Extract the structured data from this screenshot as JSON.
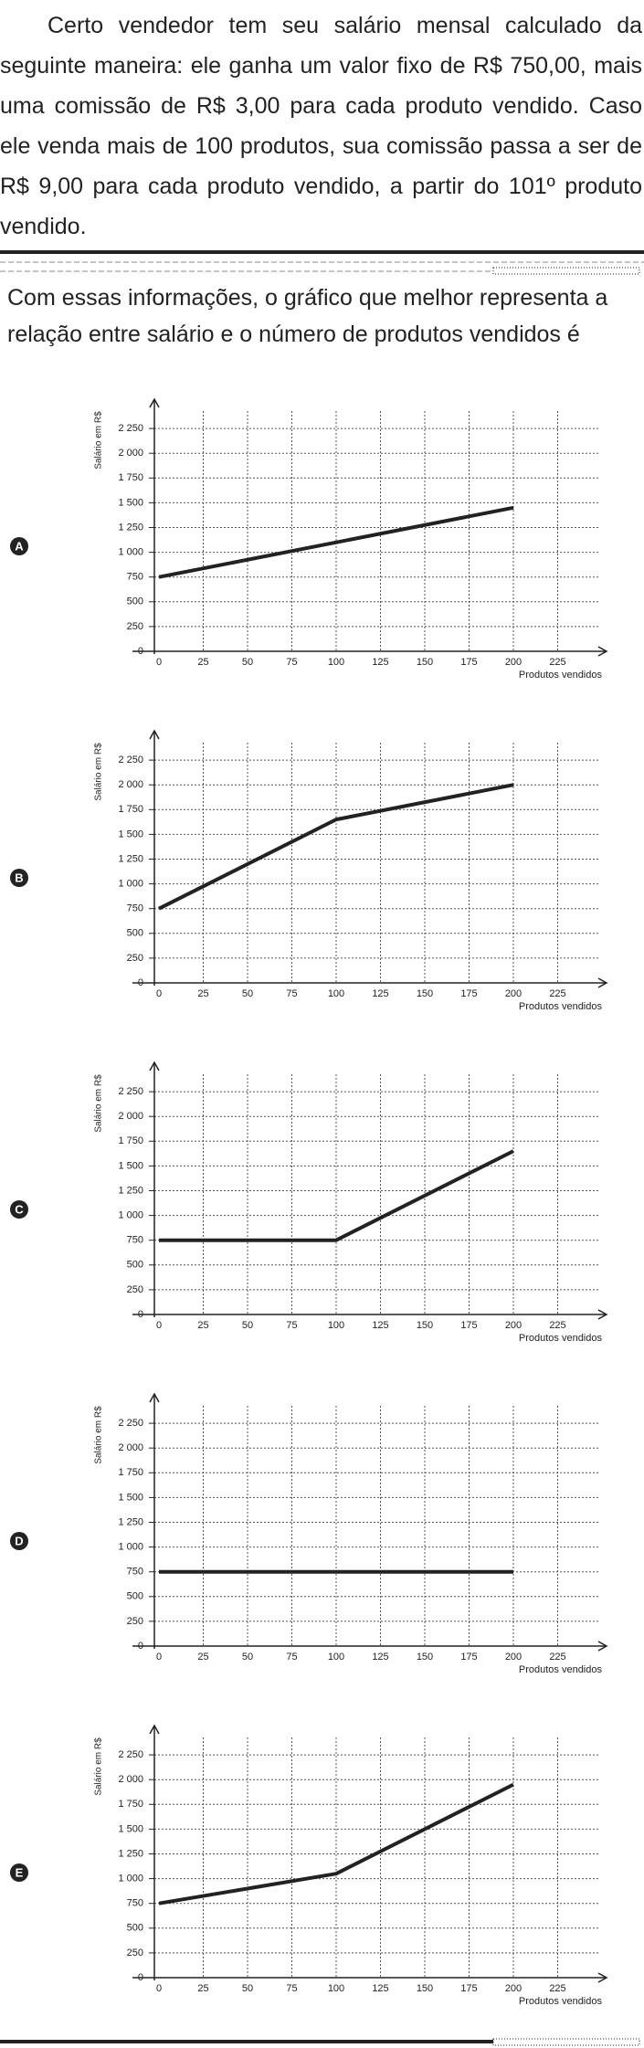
{
  "text": {
    "statement": "Certo vendedor tem seu salário mensal calculado da seguinte maneira: ele ganha um valor fixo de R$ 750,00, mais uma comissão de R$ 3,00 para cada produto vendido. Caso ele venda mais de 100 produtos, sua comissão passa a ser de R$ 9,00 para cada produto vendido, a partir do 101º produto vendido.",
    "prompt": "Com essas informações, o gráfico que melhor representa a relação entre salário e o número de produtos vendidos é"
  },
  "chart_data": [
    {
      "type": "line",
      "label": "A",
      "ylabel": "Salário em R$",
      "xlabel": "Produtos vendidos",
      "x": [
        0,
        200
      ],
      "values": [
        750,
        1450
      ],
      "color": "#222222",
      "xlim": [
        0,
        250
      ],
      "ylim": [
        0,
        2500
      ],
      "xticks": [
        0,
        25,
        50,
        75,
        100,
        125,
        150,
        175,
        200,
        225
      ],
      "yticks": [
        0,
        250,
        500,
        750,
        {
          "value": 1000,
          "label": "1 000"
        },
        {
          "value": 1250,
          "label": "1 250"
        },
        {
          "value": 1500,
          "label": "1 500"
        },
        {
          "value": 1750,
          "label": "1 750"
        },
        {
          "value": 2000,
          "label": "2 000"
        },
        {
          "value": 2250,
          "label": "2 250"
        }
      ],
      "grid": true
    },
    {
      "type": "line",
      "label": "B",
      "ylabel": "Salário em R$",
      "xlabel": "Produtos vendidos",
      "x": [
        0,
        100,
        200
      ],
      "values": [
        750,
        1650,
        2000
      ],
      "color": "#222222",
      "xlim": [
        0,
        250
      ],
      "ylim": [
        0,
        2500
      ],
      "xticks": [
        0,
        25,
        50,
        75,
        100,
        125,
        150,
        175,
        200,
        225
      ],
      "yticks": [
        0,
        250,
        500,
        750,
        {
          "value": 1000,
          "label": "1 000"
        },
        {
          "value": 1250,
          "label": "1 250"
        },
        {
          "value": 1500,
          "label": "1 500"
        },
        {
          "value": 1750,
          "label": "1 750"
        },
        {
          "value": 2000,
          "label": "2 000"
        },
        {
          "value": 2250,
          "label": "2 250"
        }
      ],
      "grid": true
    },
    {
      "type": "line",
      "label": "C",
      "ylabel": "Salário em R$",
      "xlabel": "Produtos vendidos",
      "x": [
        0,
        100,
        200
      ],
      "values": [
        750,
        750,
        1650
      ],
      "color": "#222222",
      "xlim": [
        0,
        250
      ],
      "ylim": [
        0,
        2500
      ],
      "xticks": [
        0,
        25,
        50,
        75,
        100,
        125,
        150,
        175,
        200,
        225
      ],
      "yticks": [
        0,
        250,
        500,
        750,
        {
          "value": 1000,
          "label": "1 000"
        },
        {
          "value": 1250,
          "label": "1 250"
        },
        {
          "value": 1500,
          "label": "1 500"
        },
        {
          "value": 1750,
          "label": "1 750"
        },
        {
          "value": 2000,
          "label": "2 000"
        },
        {
          "value": 2250,
          "label": "2 250"
        }
      ],
      "grid": true
    },
    {
      "type": "line",
      "label": "D",
      "ylabel": "Salário em R$",
      "xlabel": "Produtos vendidos",
      "x": [
        0,
        200
      ],
      "values": [
        750,
        750
      ],
      "color": "#222222",
      "xlim": [
        0,
        250
      ],
      "ylim": [
        0,
        2500
      ],
      "xticks": [
        0,
        25,
        50,
        75,
        100,
        125,
        150,
        175,
        200,
        225
      ],
      "yticks": [
        0,
        250,
        500,
        750,
        {
          "value": 1000,
          "label": "1 000"
        },
        {
          "value": 1250,
          "label": "1 250"
        },
        {
          "value": 1500,
          "label": "1 500"
        },
        {
          "value": 1750,
          "label": "1 750"
        },
        {
          "value": 2000,
          "label": "2 000"
        },
        {
          "value": 2250,
          "label": "2 250"
        }
      ],
      "grid": true
    },
    {
      "type": "line",
      "label": "E",
      "ylabel": "Salário em R$",
      "xlabel": "Produtos vendidos",
      "x": [
        0,
        100,
        200
      ],
      "values": [
        750,
        1050,
        1950
      ],
      "color": "#222222",
      "xlim": [
        0,
        250
      ],
      "ylim": [
        0,
        2500
      ],
      "xticks": [
        0,
        25,
        50,
        75,
        100,
        125,
        150,
        175,
        200,
        225
      ],
      "yticks": [
        0,
        250,
        500,
        750,
        {
          "value": 1000,
          "label": "1 000"
        },
        {
          "value": 1250,
          "label": "1 250"
        },
        {
          "value": 1500,
          "label": "1 500"
        },
        {
          "value": 1750,
          "label": "1 750"
        },
        {
          "value": 2000,
          "label": "2 000"
        },
        {
          "value": 2250,
          "label": "2 250"
        }
      ],
      "grid": true
    }
  ]
}
